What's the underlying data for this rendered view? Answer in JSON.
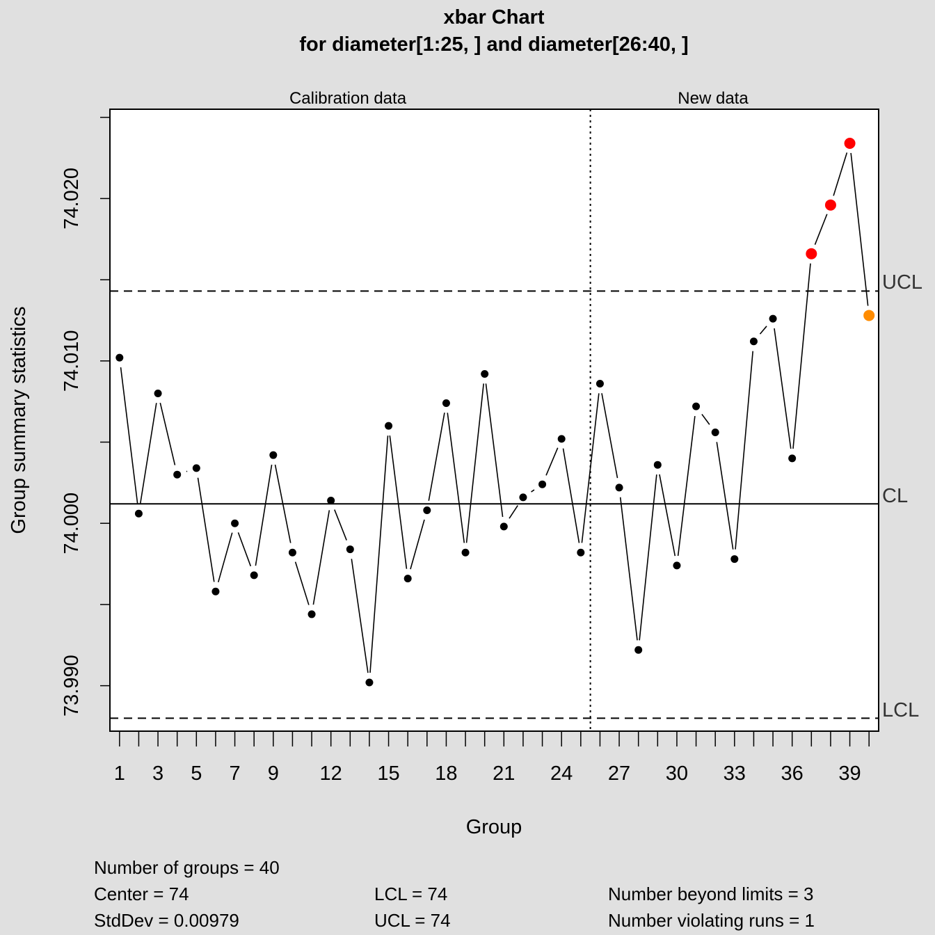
{
  "chart_data": {
    "type": "line",
    "title": "xbar Chart",
    "subtitle": "for diameter[1:25, ] and diameter[26:40, ]",
    "xlabel": "Group",
    "ylabel": "Group summary statistics",
    "xlim": [
      0.5,
      40.5
    ],
    "ylim": [
      73.9872,
      74.0255
    ],
    "x_ticks": [
      1,
      3,
      5,
      7,
      9,
      12,
      15,
      18,
      21,
      24,
      27,
      30,
      33,
      36,
      39
    ],
    "y_ticks": [
      73.99,
      74.0,
      74.01,
      74.02
    ],
    "y_tick_labels": [
      "73.990",
      "74.000",
      "74.010",
      "74.020"
    ],
    "sections": [
      {
        "label": "Calibration data",
        "from": 1,
        "to": 25
      },
      {
        "label": "New data",
        "from": 26,
        "to": 40
      }
    ],
    "center_line": 74.0012,
    "ucl": 74.0143,
    "lcl": 73.988,
    "limit_labels": {
      "ucl": "UCL",
      "cl": "CL",
      "lcl": "LCL"
    },
    "x": [
      1,
      2,
      3,
      4,
      5,
      6,
      7,
      8,
      9,
      10,
      11,
      12,
      13,
      14,
      15,
      16,
      17,
      18,
      19,
      20,
      21,
      22,
      23,
      24,
      25,
      26,
      27,
      28,
      29,
      30,
      31,
      32,
      33,
      34,
      35,
      36,
      37,
      38,
      39,
      40
    ],
    "values": [
      74.0102,
      74.0006,
      74.008,
      74.003,
      74.0034,
      73.9958,
      74.0,
      73.9968,
      74.0042,
      73.9982,
      73.9944,
      74.0014,
      73.9984,
      73.9902,
      74.006,
      73.9966,
      74.0008,
      74.0074,
      73.9982,
      74.0092,
      73.9998,
      74.0016,
      74.0024,
      74.0052,
      73.9982,
      74.0086,
      74.0022,
      73.9922,
      74.0036,
      73.9974,
      74.0072,
      74.0056,
      73.9978,
      74.0112,
      74.0126,
      74.004,
      74.0166,
      74.0196,
      74.0234,
      74.0128
    ],
    "beyond_limits": [
      37,
      38,
      39
    ],
    "violating_runs": [
      40
    ],
    "colors": {
      "normal": "#000000",
      "beyond_limits": "#ff0000",
      "violating_runs": "#ff8c00",
      "background": "#e0e0e0",
      "plot_area": "#ffffff"
    }
  },
  "stats": {
    "groups": "Number of groups = 40",
    "center": "Center = 74",
    "stddev": "StdDev = 0.00979",
    "lcl": "LCL = 74",
    "ucl": "UCL = 74",
    "beyond": "Number beyond limits = 3",
    "runs": "Number violating runs = 1"
  }
}
